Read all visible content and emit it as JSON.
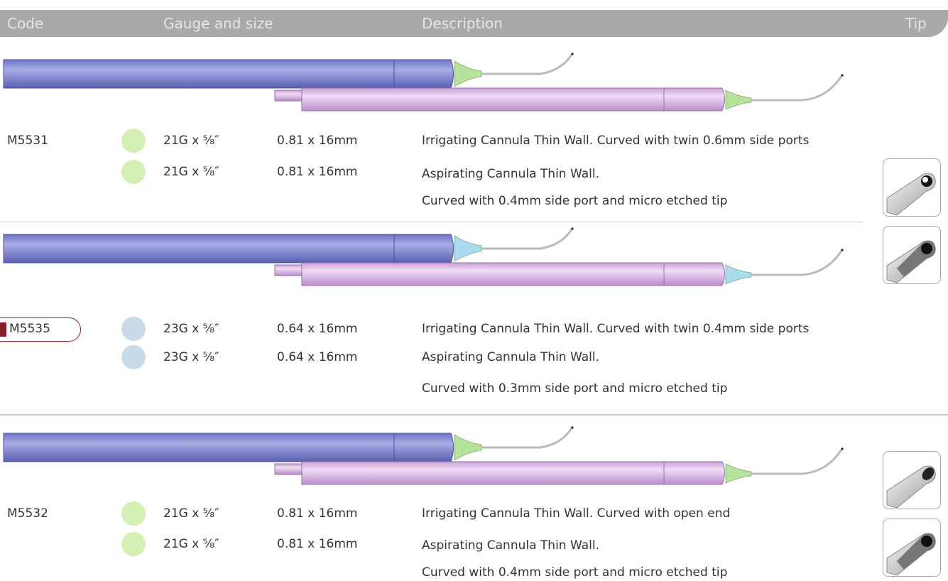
{
  "header": {
    "columns": [
      "Code",
      "Gauge and size",
      "Description",
      "Tip"
    ]
  },
  "products": [
    {
      "code": "M5531",
      "items": [
        {
          "gauge": "21G x ⅝″",
          "size": "0.81 x 16mm",
          "description": [
            "Irrigating Cannula Thin Wall. Curved with twin 0.6mm side ports"
          ]
        },
        {
          "gauge": "21G x ⅝″",
          "size": "0.81 x 16mm",
          "description": [
            "Aspirating Cannula Thin Wall.",
            "Curved with 0.4mm side port and micro etched tip"
          ]
        }
      ]
    },
    {
      "code": "M5535",
      "items": [
        {
          "gauge": "23G x ⅝″",
          "size": "0.64 x 16mm",
          "description": [
            "Irrigating Cannula Thin Wall. Curved with twin 0.4mm side ports"
          ]
        },
        {
          "gauge": "23G x ⅝″",
          "size": "0.64 x 16mm",
          "description": [
            "Aspirating Cannula Thin Wall.",
            "Curved with 0.3mm side port and micro etched tip"
          ]
        }
      ]
    },
    {
      "code": "M5532",
      "items": [
        {
          "gauge": "21G x ⅝″",
          "size": "0.81 x 16mm",
          "description": [
            "Irrigating Cannula Thin Wall. Curved with open end"
          ]
        },
        {
          "gauge": "21G x ⅝″",
          "size": "0.81 x 16mm",
          "description": [
            "Aspirating Cannula Thin Wall.",
            "Curved with 0.4mm side port and micro etched tip"
          ]
        }
      ]
    }
  ]
}
